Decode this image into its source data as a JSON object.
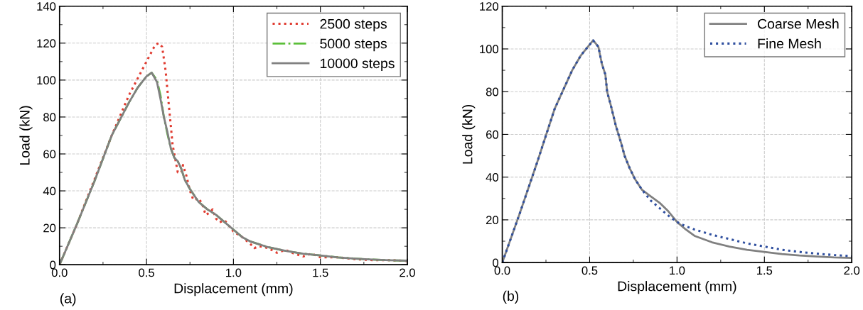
{
  "chart_data": [
    {
      "type": "line",
      "xlabel": "Displacement (mm)",
      "ylabel": "Load (kN)",
      "annotations": [
        "(a)"
      ],
      "xlim": [
        0,
        2
      ],
      "xticks": [
        {
          "value": 0,
          "label": "0.0"
        },
        {
          "value": 0.5,
          "label": "0.5"
        },
        {
          "value": 1,
          "label": "1.0"
        },
        {
          "value": 1.5,
          "label": "1.5"
        },
        {
          "value": 2,
          "label": "2.0"
        }
      ],
      "ylim": [
        0,
        140
      ],
      "yticks": [
        0,
        20,
        40,
        60,
        80,
        100,
        120,
        140
      ],
      "grid": true,
      "legend": "top right",
      "series": [
        {
          "name": "2500 steps",
          "color": "#e03c31",
          "line_style": "dotted",
          "x": [
            0,
            0.1,
            0.2,
            0.3,
            0.4,
            0.45,
            0.5,
            0.55,
            0.57,
            0.59,
            0.61,
            0.63,
            0.65,
            0.67,
            0.68,
            0.7,
            0.71,
            0.73,
            0.75,
            0.77,
            0.8,
            0.82,
            0.84,
            0.86,
            0.88,
            0.9,
            0.92,
            0.95,
            1.0,
            1.05,
            1.1,
            1.12,
            1.15,
            1.2,
            1.25,
            1.3,
            1.35,
            1.4,
            1.45,
            1.5,
            1.6,
            1.7,
            1.8,
            1.9,
            2.0
          ],
          "values": [
            0,
            22,
            46,
            70,
            92,
            101,
            110,
            119,
            120,
            118,
            105,
            85,
            65,
            55,
            50,
            50,
            54,
            48,
            40,
            35,
            36,
            33,
            27,
            28,
            30,
            25,
            23,
            24,
            18,
            15,
            11,
            9,
            10,
            9,
            6.5,
            8,
            6,
            4.5,
            6,
            4,
            4,
            3,
            2.5,
            2.5,
            2
          ]
        },
        {
          "name": "5000 steps",
          "color": "#5cbf3a",
          "line_style": "dashdot",
          "x": [
            0,
            0.1,
            0.2,
            0.3,
            0.4,
            0.45,
            0.5,
            0.53,
            0.56,
            0.58,
            0.6,
            0.62,
            0.64,
            0.66,
            0.68,
            0.7,
            0.72,
            0.75,
            0.8,
            0.85,
            0.9,
            0.95,
            1.0,
            1.05,
            1.1,
            1.2,
            1.3,
            1.4,
            1.5,
            1.6,
            1.7,
            1.8,
            1.9,
            2.0
          ],
          "values": [
            0,
            22,
            45,
            70,
            88,
            96,
            102,
            104,
            100,
            92,
            80,
            71,
            63,
            58,
            56,
            52,
            46,
            41,
            34,
            30,
            27,
            23,
            19,
            15,
            12.5,
            9.5,
            7.5,
            6,
            5,
            4,
            3.3,
            2.8,
            2.4,
            2.2
          ]
        },
        {
          "name": "10000 steps",
          "color": "#808080",
          "line_style": "solid",
          "x": [
            0,
            0.1,
            0.2,
            0.3,
            0.4,
            0.45,
            0.5,
            0.53,
            0.56,
            0.58,
            0.6,
            0.62,
            0.64,
            0.66,
            0.68,
            0.7,
            0.72,
            0.75,
            0.8,
            0.85,
            0.9,
            0.95,
            1.0,
            1.05,
            1.1,
            1.2,
            1.3,
            1.4,
            1.5,
            1.6,
            1.7,
            1.8,
            1.9,
            2.0
          ],
          "values": [
            0,
            22,
            45,
            70,
            88,
            96,
            102,
            104,
            99,
            90,
            80,
            72,
            63,
            58,
            56,
            52,
            46,
            41,
            34,
            30,
            27,
            23,
            19,
            15,
            12.5,
            9.5,
            7.5,
            6,
            5,
            4,
            3.3,
            2.8,
            2.4,
            2.2
          ]
        }
      ]
    },
    {
      "type": "line",
      "xlabel": "Displacement (mm)",
      "ylabel": "Load (kN)",
      "annotations": [
        "(b)"
      ],
      "xlim": [
        0,
        2
      ],
      "xticks": [
        {
          "value": 0,
          "label": "0.0"
        },
        {
          "value": 0.5,
          "label": "0.5"
        },
        {
          "value": 1,
          "label": "1.0"
        },
        {
          "value": 1.5,
          "label": "1.5"
        },
        {
          "value": 2,
          "label": "2.0"
        }
      ],
      "ylim": [
        0,
        120
      ],
      "yticks": [
        0,
        20,
        40,
        60,
        80,
        100,
        120
      ],
      "grid": true,
      "legend": "top right",
      "series": [
        {
          "name": "Coarse Mesh",
          "color": "#808080",
          "line_style": "solid",
          "x": [
            0,
            0.1,
            0.2,
            0.3,
            0.4,
            0.45,
            0.5,
            0.52,
            0.55,
            0.57,
            0.59,
            0.6,
            0.62,
            0.65,
            0.68,
            0.7,
            0.73,
            0.76,
            0.8,
            0.85,
            0.9,
            0.95,
            1.0,
            1.05,
            1.1,
            1.2,
            1.3,
            1.4,
            1.5,
            1.6,
            1.7,
            1.8,
            1.9,
            2.0
          ],
          "values": [
            0,
            23,
            47,
            72,
            90,
            97,
            102,
            104,
            101,
            93,
            88,
            80,
            74,
            64,
            56,
            50,
            44,
            39,
            34,
            31,
            28,
            24,
            19,
            15.5,
            12.5,
            9.5,
            7.5,
            6,
            5,
            4,
            3.3,
            2.8,
            2.4,
            2.2
          ]
        },
        {
          "name": "Fine Mesh",
          "color": "#2f4f9f",
          "line_style": "dotted",
          "x": [
            0,
            0.1,
            0.2,
            0.3,
            0.4,
            0.45,
            0.5,
            0.52,
            0.55,
            0.57,
            0.59,
            0.6,
            0.62,
            0.65,
            0.68,
            0.7,
            0.73,
            0.76,
            0.8,
            0.85,
            0.9,
            0.95,
            1.0,
            1.05,
            1.1,
            1.2,
            1.3,
            1.4,
            1.5,
            1.6,
            1.7,
            1.8,
            1.9,
            2.0
          ],
          "values": [
            0,
            23,
            47,
            72,
            90,
            97,
            102,
            104,
            101,
            93,
            88,
            80,
            74,
            64,
            56,
            50,
            44,
            39,
            34,
            29,
            25.5,
            22,
            19,
            17,
            15.5,
            13,
            11,
            9,
            7.5,
            6,
            5,
            4.2,
            3.5,
            3
          ]
        }
      ]
    }
  ]
}
